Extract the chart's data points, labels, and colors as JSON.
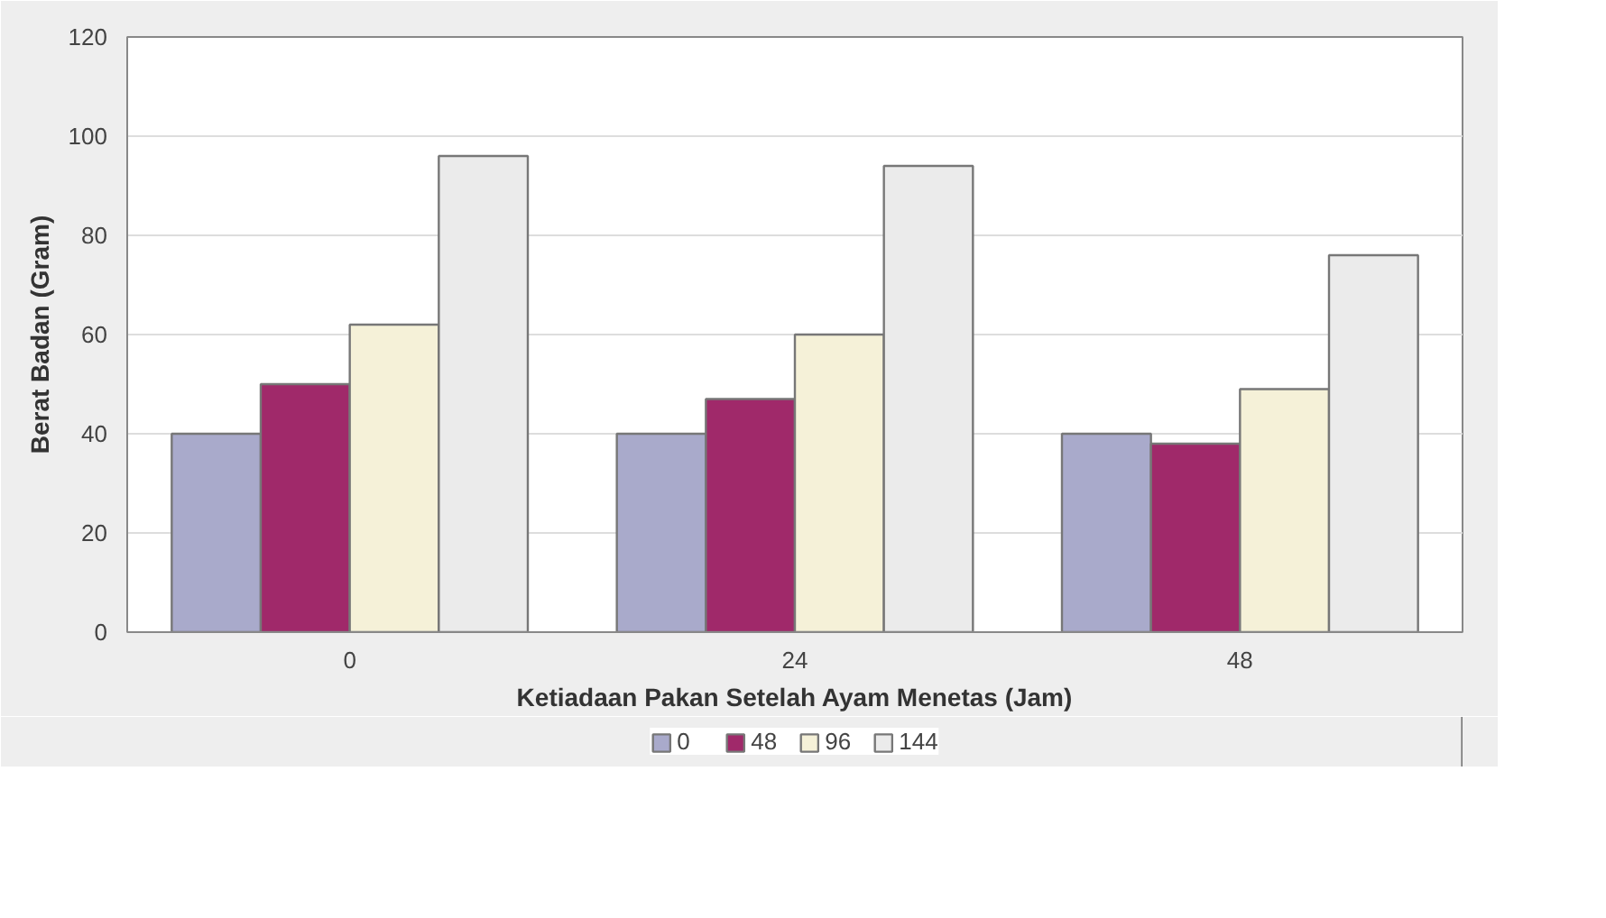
{
  "chart_data": {
    "type": "bar",
    "xlabel": "Ketiadaan Pakan Setelah Ayam Menetas (Jam)",
    "ylabel": "Berat Badan (Gram)",
    "categories": [
      "0",
      "24",
      "48"
    ],
    "series": [
      {
        "name": "0",
        "color": "#a9aacb",
        "values": [
          40,
          40,
          40
        ]
      },
      {
        "name": "48",
        "color": "#a0296a",
        "values": [
          50,
          47,
          38
        ]
      },
      {
        "name": "96",
        "color": "#f5f1d8",
        "values": [
          62,
          60,
          49
        ]
      },
      {
        "name": "144",
        "color": "#ebebeb",
        "values": [
          96,
          94,
          76
        ]
      }
    ],
    "ylim": [
      0,
      120
    ],
    "yticks": [
      0,
      20,
      40,
      60,
      80,
      100,
      120
    ],
    "grid": "y",
    "legend": "bottom"
  }
}
